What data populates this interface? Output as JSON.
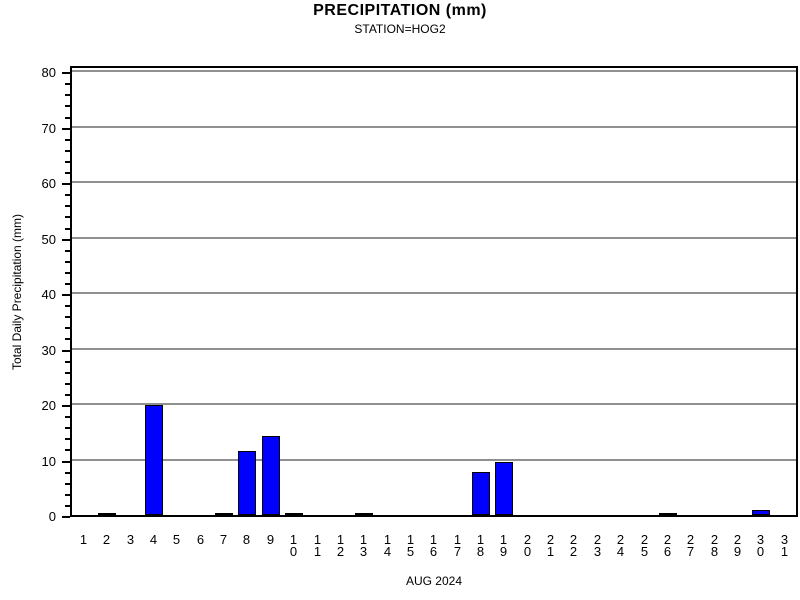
{
  "header": {
    "title": "PRECIPITATION (mm)",
    "subtitle": "STATION=HOG2"
  },
  "chart_data": {
    "type": "bar",
    "title": "PRECIPITATION (mm)",
    "subtitle": "STATION=HOG2",
    "xlabel": "AUG 2024",
    "ylabel": "Total Daily Precipitation (mm)",
    "categories": [
      1,
      2,
      3,
      4,
      5,
      6,
      7,
      8,
      9,
      10,
      11,
      12,
      13,
      14,
      15,
      16,
      17,
      18,
      19,
      20,
      21,
      22,
      23,
      24,
      25,
      26,
      27,
      28,
      29,
      30,
      31
    ],
    "values": [
      0,
      0.2,
      0,
      19.8,
      0,
      0,
      0.2,
      11.5,
      14.3,
      0.2,
      0,
      0,
      0.2,
      0,
      0,
      0,
      0,
      7.8,
      9.5,
      0,
      0,
      0,
      0,
      0,
      0,
      0.2,
      0,
      0,
      0,
      0.9,
      0
    ],
    "ylim": [
      0,
      80
    ],
    "y_axis_frame_max": 81.3,
    "y_major_step": 10,
    "y_minor_step": 2,
    "grid": "horizontal-major",
    "legend": "none",
    "bar_color": "#0000ff",
    "bar_border_color": "#000000",
    "gridline_color": "#909090",
    "axis_color": "#000000",
    "background_color": "#ffffff"
  }
}
